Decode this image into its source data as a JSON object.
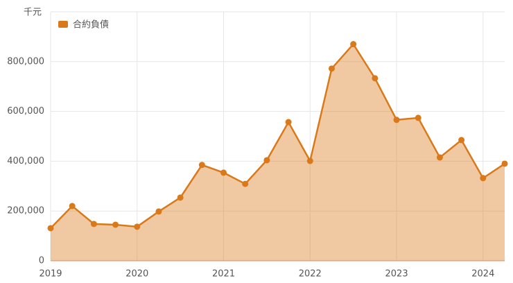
{
  "chart_data": {
    "type": "area",
    "unit_label": "千元",
    "x": [
      2019,
      2019.25,
      2019.5,
      2019.75,
      2020,
      2020.25,
      2020.5,
      2020.75,
      2021,
      2021.25,
      2021.5,
      2021.75,
      2022,
      2022.25,
      2022.5,
      2022.75,
      2023,
      2023.25,
      2023.5,
      2023.75,
      2024,
      2024.25
    ],
    "series": [
      {
        "name": "合約負債",
        "color": "#d9791a",
        "values": [
          131000,
          220000,
          148000,
          145000,
          137000,
          198000,
          254000,
          385000,
          354000,
          309000,
          404000,
          557000,
          401000,
          772000,
          870000,
          733000,
          566000,
          574000,
          415000,
          485000,
          332000,
          390000
        ]
      }
    ],
    "xlim": [
      2019,
      2024.25
    ],
    "xticks": [
      2019,
      2020,
      2021,
      2022,
      2023,
      2024
    ],
    "ylim": [
      0,
      1000000
    ],
    "yticks": [
      0,
      {
        "value": 200000,
        "label": "200,000"
      },
      {
        "value": 400000,
        "label": "400,000"
      },
      {
        "value": 600000,
        "label": "600,000"
      },
      {
        "value": 800000,
        "label": "800,000"
      }
    ],
    "grid": true,
    "legend": "top-left"
  }
}
